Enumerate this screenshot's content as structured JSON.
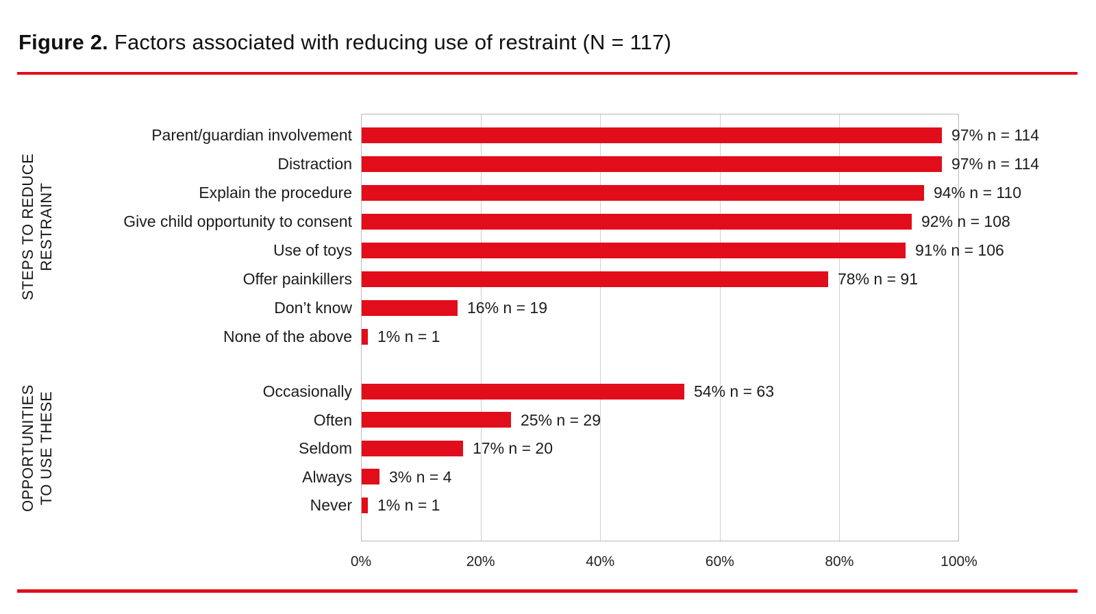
{
  "figure": {
    "title_prefix": "Figure 2.",
    "title_rest": " Factors associated with reducing use of restraint (N = 117)"
  },
  "colors": {
    "accent_red": "#e20d1a",
    "gridline": "#cfcfcf",
    "plot_border": "#b7b7b7",
    "text": "#1c1c1c"
  },
  "chart_data": {
    "type": "bar",
    "orientation": "horizontal",
    "title": "Figure 2. Factors associated with reducing use of restraint (N = 117)",
    "xlabel": "",
    "ylabel": "",
    "xlim": [
      0,
      100
    ],
    "x_tick_values": [
      0,
      20,
      40,
      60,
      80,
      100
    ],
    "x_tick_labels": [
      "0%",
      "20%",
      "40%",
      "60%",
      "80%",
      "100%"
    ],
    "grid": "vertical",
    "legend": "none",
    "bar_color": "#e20d1a",
    "groups": [
      {
        "label": "STEPS TO REDUCE RESTRAINT",
        "label_lines": [
          "STEPS TO REDUCE",
          "RESTRAINT"
        ],
        "items": [
          {
            "category": "Parent/guardian involvement",
            "percent": 97,
            "n": 114,
            "value_label": "97% n = 114"
          },
          {
            "category": "Distraction",
            "percent": 97,
            "n": 114,
            "value_label": "97% n = 114"
          },
          {
            "category": "Explain the procedure",
            "percent": 94,
            "n": 110,
            "value_label": "94% n = 110"
          },
          {
            "category": "Give child opportunity to consent",
            "percent": 92,
            "n": 108,
            "value_label": "92% n = 108"
          },
          {
            "category": "Use of toys",
            "percent": 91,
            "n": 106,
            "value_label": "91% n = 106"
          },
          {
            "category": "Offer painkillers",
            "percent": 78,
            "n": 91,
            "value_label": "78% n = 91"
          },
          {
            "category": "Don’t know",
            "percent": 16,
            "n": 19,
            "value_label": "16% n = 19"
          },
          {
            "category": "None of the above",
            "percent": 1,
            "n": 1,
            "value_label": "1% n = 1"
          }
        ]
      },
      {
        "label": "OPPORTUNITIES TO USE THESE",
        "label_lines": [
          "OPPORTUNITIES",
          "TO USE THESE"
        ],
        "items": [
          {
            "category": "Occasionally",
            "percent": 54,
            "n": 63,
            "value_label": "54% n = 63"
          },
          {
            "category": "Often",
            "percent": 25,
            "n": 29,
            "value_label": "25% n = 29"
          },
          {
            "category": "Seldom",
            "percent": 17,
            "n": 20,
            "value_label": "17% n = 20"
          },
          {
            "category": "Always",
            "percent": 3,
            "n": 4,
            "value_label": "3% n = 4"
          },
          {
            "category": "Never",
            "percent": 1,
            "n": 1,
            "value_label": "1% n = 1"
          }
        ]
      }
    ]
  }
}
